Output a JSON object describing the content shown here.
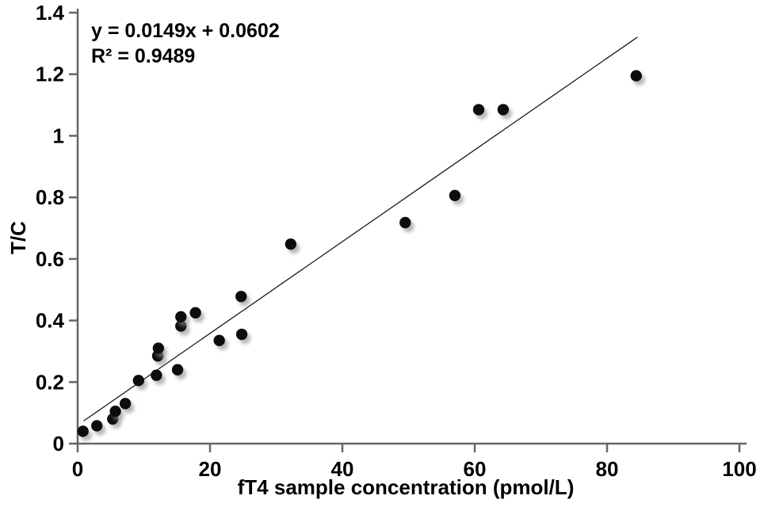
{
  "chart_data": {
    "type": "scatter",
    "title": "",
    "xlabel": "fT4 sample concentration (pmol/L)",
    "ylabel": "T/C",
    "xlim": [
      0,
      100
    ],
    "ylim": [
      0,
      1.4
    ],
    "x_ticks": [
      0,
      20,
      40,
      60,
      80,
      100
    ],
    "x_tick_labels": [
      "0",
      "20",
      "40",
      "60",
      "80",
      "100"
    ],
    "y_ticks": [
      0,
      0.2,
      0.4,
      0.6,
      0.8,
      1,
      1.2,
      1.4
    ],
    "y_tick_labels": [
      "0",
      "0.2",
      "0.4",
      "0.6",
      "0.8",
      "1",
      "1.2",
      "1.4"
    ],
    "grid": false,
    "legend": "none",
    "annotations": {
      "equation": "y = 0.0149x + 0.0602",
      "r_squared": "R² = 0.9489"
    },
    "points": [
      [
        0.8,
        0.04
      ],
      [
        2.9,
        0.058
      ],
      [
        5.3,
        0.08
      ],
      [
        5.7,
        0.105
      ],
      [
        7.2,
        0.13
      ],
      [
        9.2,
        0.205
      ],
      [
        11.9,
        0.222
      ],
      [
        12.1,
        0.285
      ],
      [
        12.2,
        0.31
      ],
      [
        15.1,
        0.24
      ],
      [
        15.6,
        0.382
      ],
      [
        15.6,
        0.412
      ],
      [
        17.8,
        0.425
      ],
      [
        21.4,
        0.335
      ],
      [
        24.8,
        0.355
      ],
      [
        24.7,
        0.478
      ],
      [
        32.2,
        0.648
      ],
      [
        49.5,
        0.718
      ],
      [
        57.0,
        0.806
      ],
      [
        60.6,
        1.085
      ],
      [
        64.3,
        1.085
      ],
      [
        84.4,
        1.195
      ]
    ],
    "trendline": {
      "slope": 0.0149,
      "intercept": 0.0602,
      "x_start": 0.9,
      "x_end": 84.6
    },
    "colors": {
      "point": "#0a0a0a",
      "trendline": "#1a1a1a",
      "axis": "#666666",
      "text": "#000000",
      "background": "#ffffff"
    }
  }
}
